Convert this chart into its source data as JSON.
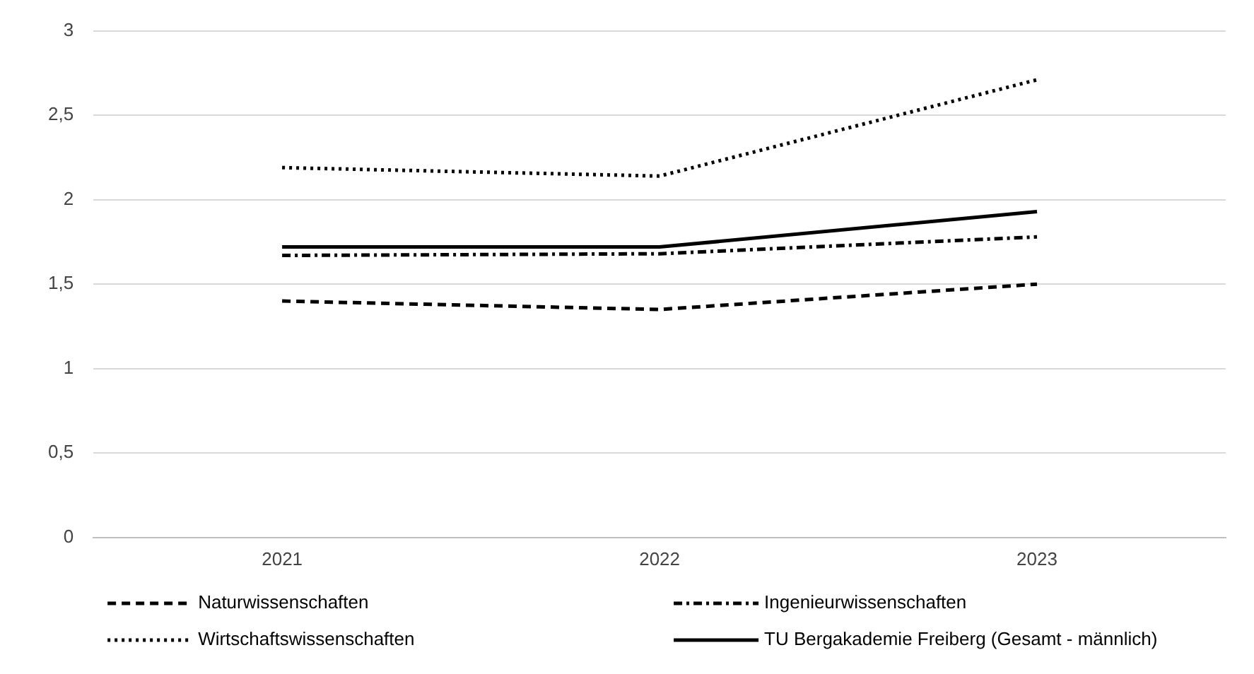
{
  "chart_data": {
    "type": "line",
    "categories": [
      "2021",
      "2022",
      "2023"
    ],
    "series": [
      {
        "name": "Naturwissenschaften",
        "color": "#000000",
        "line_style": "dashed",
        "values": [
          1.4,
          1.35,
          1.5
        ]
      },
      {
        "name": "Ingenieurwissenschaften",
        "color": "#000000",
        "line_style": "dashdot",
        "values": [
          1.67,
          1.68,
          1.78
        ]
      },
      {
        "name": "Wirtschaftswissenschaften",
        "color": "#000000",
        "line_style": "dotted",
        "values": [
          2.19,
          2.14,
          2.71
        ]
      },
      {
        "name": "TU Bergakademie Freiberg (Gesamt - männlich)",
        "color": "#000000",
        "line_style": "solid",
        "values": [
          1.72,
          1.72,
          1.93
        ]
      }
    ],
    "ylim": [
      0,
      3
    ],
    "yticks": [
      {
        "value": 0,
        "label": "0"
      },
      {
        "value": 0.5,
        "label": "0,5"
      },
      {
        "value": 1,
        "label": "1"
      },
      {
        "value": 1.5,
        "label": "1,5"
      },
      {
        "value": 2,
        "label": "2"
      },
      {
        "value": 2.5,
        "label": "2,5"
      },
      {
        "value": 3,
        "label": "3"
      }
    ],
    "grid": "y",
    "legend": "bottom",
    "marker": "none"
  }
}
